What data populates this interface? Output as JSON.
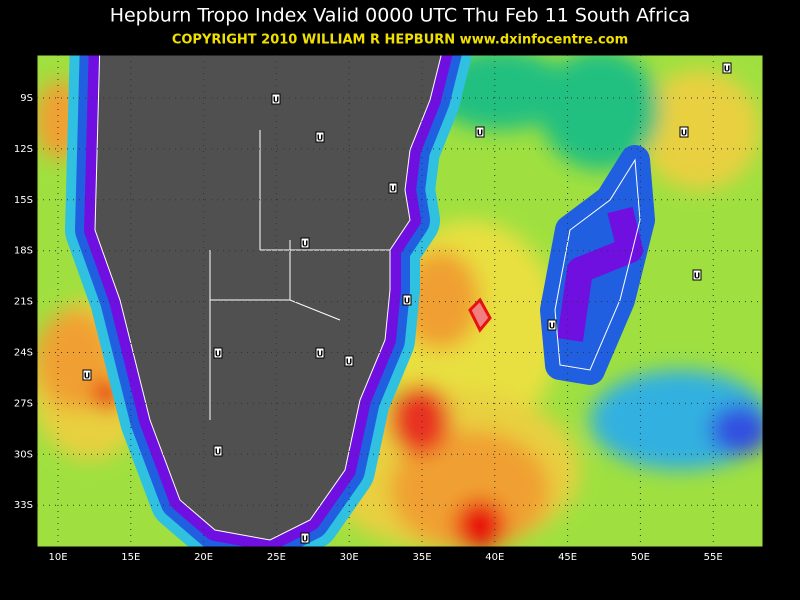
{
  "header": {
    "title": "Hepburn Tropo Index Valid 0000 UTC Thu Feb 11 South Africa",
    "copyright": "COPYRIGHT 2010   WILLIAM R HEPBURN   www.dxinfocentre.com"
  },
  "map": {
    "lat_labels": [
      "9S",
      "12S",
      "15S",
      "18S",
      "21S",
      "24S",
      "27S",
      "30S",
      "33S"
    ],
    "lon_labels": [
      "10E",
      "15E",
      "20E",
      "25E",
      "30E",
      "35E",
      "40E",
      "45E",
      "50E",
      "55E"
    ],
    "markers": [
      "U",
      "U",
      "U",
      "U",
      "U",
      "U",
      "U",
      "U",
      "U",
      "U",
      "U",
      "U",
      "U",
      "U",
      "U",
      "U"
    ]
  }
}
